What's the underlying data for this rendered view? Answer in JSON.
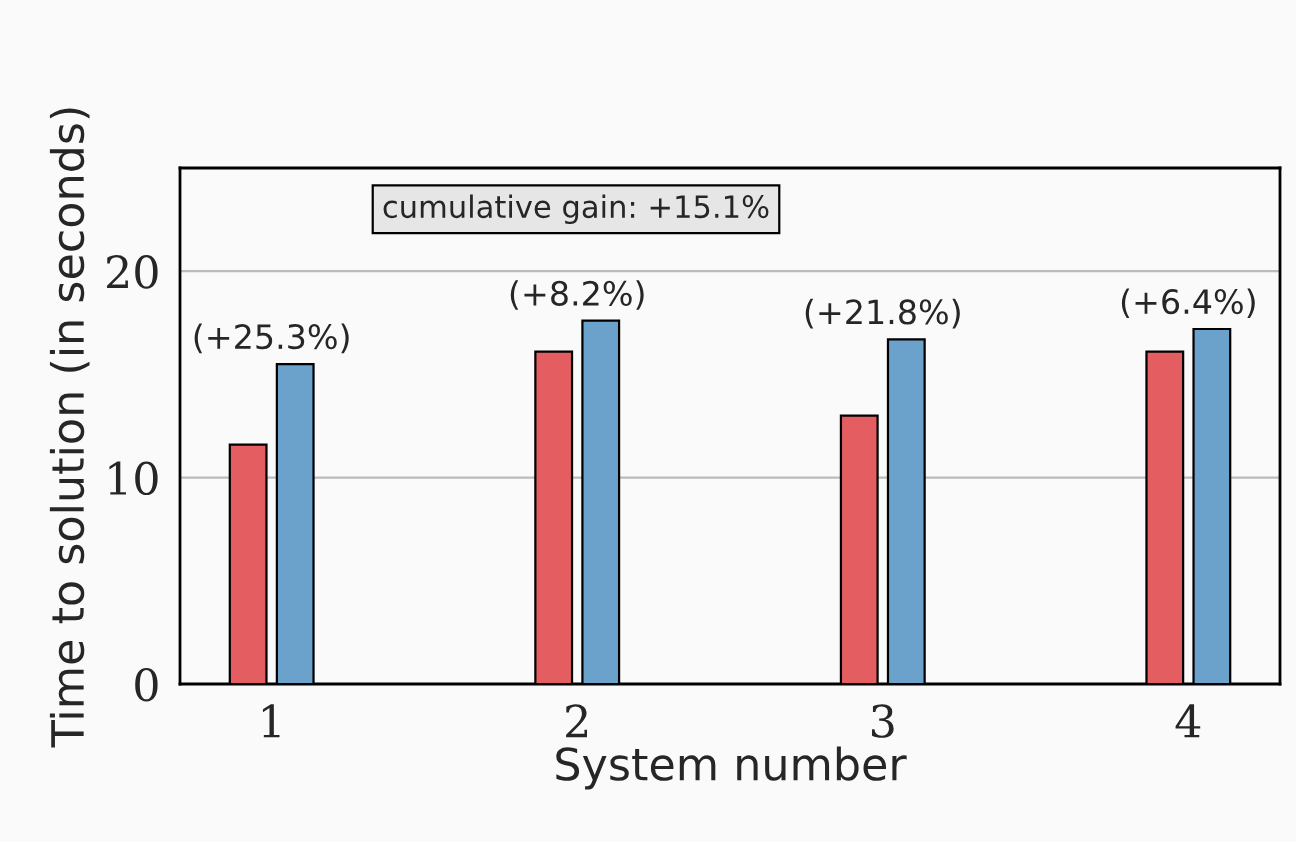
{
  "chart_data": {
    "type": "bar",
    "xlabel": "System number",
    "ylabel": "Time to solution (in seconds)",
    "x": [
      1,
      2,
      3,
      4
    ],
    "xlim": [
      0.7,
      4.3
    ],
    "xticks": [
      1,
      2,
      3,
      4
    ],
    "ylim": [
      0,
      25
    ],
    "yticks": [
      0,
      10,
      20
    ],
    "grid": "y",
    "legend": false,
    "series": [
      {
        "color": "#e35d61",
        "values": [
          11.6,
          16.1,
          13.0,
          16.1
        ]
      },
      {
        "color": "#6aa2cc",
        "values": [
          15.5,
          17.6,
          16.7,
          17.2
        ]
      }
    ],
    "annotations": [
      "cumulative gain: +15.1%",
      {
        "text": "(+25.3%)",
        "x": 1,
        "y": 15.5
      },
      {
        "text": "(+8.2%)",
        "x": 2,
        "y": 17.6
      },
      {
        "text": "(+21.8%)",
        "x": 3,
        "y": 16.7
      },
      {
        "text": "(+6.4%)",
        "x": 4,
        "y": 17.2
      }
    ]
  }
}
